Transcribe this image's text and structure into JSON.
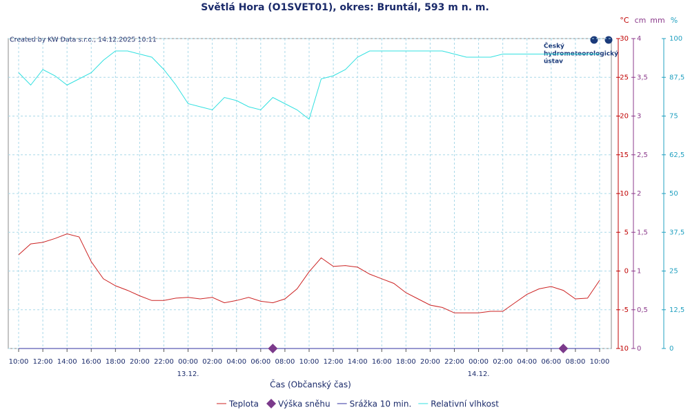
{
  "chart_data": {
    "type": "line",
    "title": "Světlá Hora (O1SVET01), okres: Bruntál, 593 m n. m.",
    "credit": "Created by KW Data s.r.o., 14.12.2025 10:11",
    "logo": [
      "Český",
      "hydrometeorologický",
      "ústav"
    ],
    "x_label": "Čas (Občanský čas)",
    "units": [
      {
        "label": "°C",
        "color": "#c00000"
      },
      {
        "label": "cm",
        "color": "#8b3a8b"
      },
      {
        "label": "mm",
        "color": "#8b3a8b"
      },
      {
        "label": "%",
        "color": "#20a0c0"
      }
    ],
    "categories": [
      "10:00",
      null,
      "12:00",
      null,
      "14:00",
      null,
      "16:00",
      null,
      "18:00",
      null,
      "20:00",
      null,
      "22:00",
      null,
      "00:00",
      null,
      "02:00",
      null,
      "04:00",
      null,
      "06:00",
      null,
      "08:00",
      null,
      "10:00",
      null,
      "12:00",
      null,
      "14:00",
      null,
      "16:00",
      null,
      "18:00",
      null,
      "20:00",
      null,
      "22:00",
      null,
      "00:00",
      null,
      "02:00",
      null,
      "04:00",
      null,
      "06:00",
      null,
      "08:00",
      null,
      "10:00"
    ],
    "date_labels": [
      "13.12.",
      "14.12."
    ],
    "grid": true,
    "ylim": [
      -10,
      30
    ],
    "yticks": [
      30,
      25,
      20,
      15,
      10,
      5,
      0,
      -5,
      -10
    ],
    "y2lim": [
      0,
      4
    ],
    "y2ticks": [
      4,
      {
        "value": 3.5,
        "label": "3,5"
      },
      3,
      {
        "value": 2.5,
        "label": "2,5"
      },
      2,
      {
        "value": 1.5,
        "label": "1,5"
      },
      1,
      {
        "value": 0.5,
        "label": "0,5"
      },
      0
    ],
    "y3lim": [
      0,
      100
    ],
    "y3ticks": [
      100,
      {
        "value": 87.5,
        "label": "87,5"
      },
      75,
      {
        "value": 62.5,
        "label": "62,5"
      },
      50,
      {
        "value": 37.5,
        "label": "37,5"
      },
      25,
      {
        "value": 12.5,
        "label": "12,5"
      },
      0
    ],
    "series": [
      {
        "name": "Teplota",
        "color": "#cc2222",
        "type": "line",
        "axis": "y",
        "values": [
          2.1,
          3.5,
          3.7,
          4.2,
          4.8,
          4.4,
          1.2,
          -1.0,
          -1.9,
          -2.5,
          -3.2,
          -3.8,
          -3.8,
          -3.5,
          -3.4,
          -3.6,
          -3.4,
          -4.1,
          -3.8,
          -3.4,
          -3.9,
          -4.1,
          -3.6,
          -2.3,
          -0.1,
          1.7,
          0.6,
          0.7,
          0.5,
          -0.4,
          -1.0,
          -1.6,
          -2.8,
          -3.6,
          -4.4,
          -4.7,
          -5.4,
          -5.4,
          -5.4,
          -5.2,
          -5.2,
          -4.1,
          -3.0,
          -2.3,
          -2.0,
          -2.5,
          -3.6,
          -3.5,
          -1.2
        ]
      },
      {
        "name": "Výška sněhu",
        "color": "#7b3a8b",
        "type": "scatter",
        "axis": "y2",
        "values": [
          null,
          null,
          null,
          null,
          null,
          null,
          null,
          null,
          null,
          null,
          null,
          null,
          null,
          null,
          null,
          null,
          null,
          null,
          null,
          null,
          null,
          0,
          null,
          null,
          null,
          null,
          null,
          null,
          null,
          null,
          null,
          null,
          null,
          null,
          null,
          null,
          null,
          null,
          null,
          null,
          null,
          null,
          null,
          null,
          null,
          0,
          null,
          null,
          null
        ]
      },
      {
        "name": "Srážka 10 min.",
        "color": "#3030a0",
        "type": "line",
        "axis": "y2",
        "values": [
          0,
          0,
          0,
          0,
          0,
          0,
          0,
          0,
          0,
          0,
          0,
          0,
          0,
          0,
          0,
          0,
          0,
          0,
          0,
          0,
          0,
          0,
          0,
          0,
          0,
          0,
          0,
          0,
          0,
          0,
          0,
          0,
          0,
          0,
          0,
          0,
          0,
          0,
          0,
          0,
          0,
          0,
          0,
          0,
          0,
          0,
          0,
          0,
          0
        ]
      },
      {
        "name": "Relativní vlhkost",
        "color": "#30e0e0",
        "type": "line",
        "axis": "y3",
        "values": [
          89,
          85,
          90,
          88,
          85,
          87,
          89,
          93,
          96,
          96,
          95,
          94,
          90,
          85,
          79,
          78,
          77,
          81,
          80,
          78,
          77,
          81,
          79,
          77,
          74,
          87,
          88,
          90,
          94,
          96,
          96,
          96,
          96,
          96,
          96,
          96,
          95,
          94,
          94,
          94,
          95,
          95,
          95,
          95,
          95,
          95,
          95,
          95,
          95
        ]
      }
    ]
  }
}
